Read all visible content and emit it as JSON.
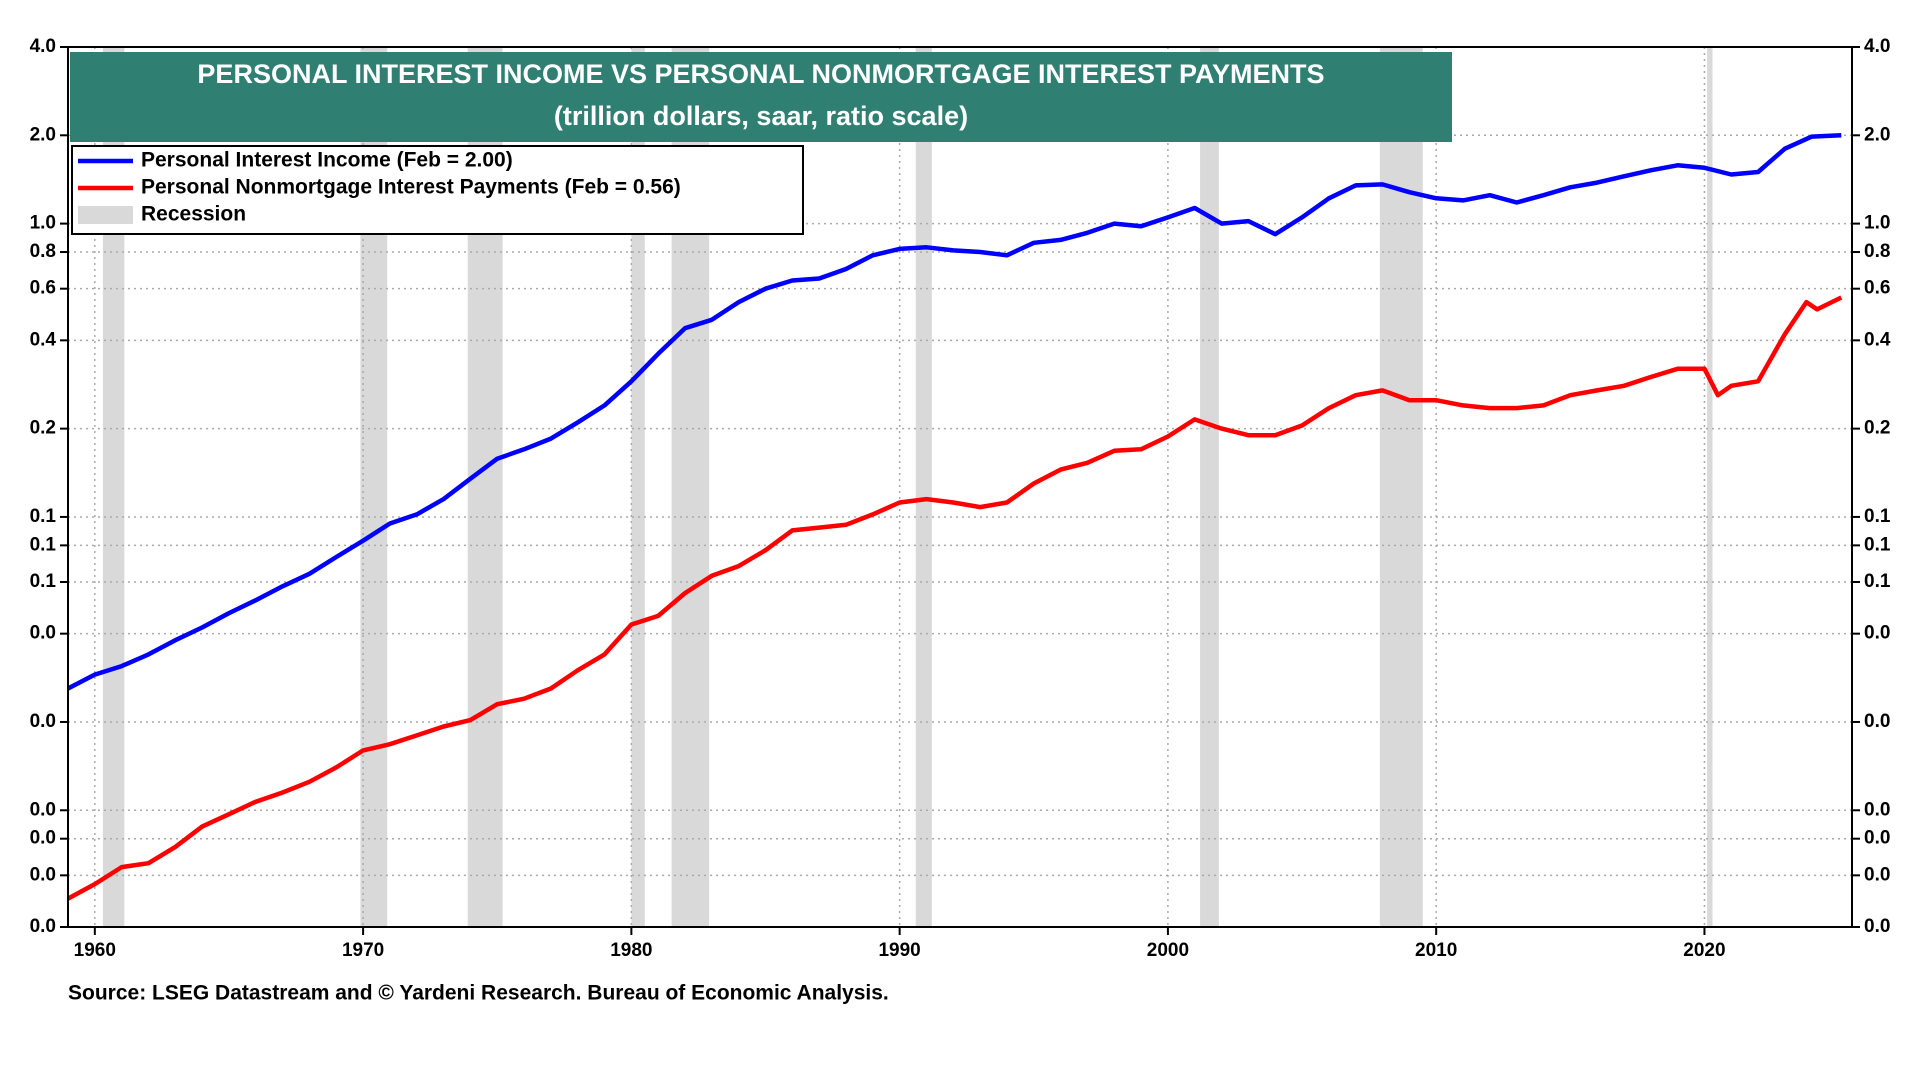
{
  "chart_data": {
    "type": "line",
    "title": "PERSONAL INTEREST INCOME VS PERSONAL NONMORTGAGE INTEREST PAYMENTS",
    "subtitle": "(trillion dollars, saar, ratio scale)",
    "source": "Source: LSEG Datastream and © Yardeni Research. Bureau of Economic Analysis.",
    "log_scale": true,
    "grid": true,
    "legend": "top-left",
    "xlim": [
      1959,
      2025.5
    ],
    "xticks": [
      1960,
      1970,
      1980,
      1990,
      2000,
      2010,
      2020
    ],
    "ylim": [
      0.004,
      4
    ],
    "yticks": [
      {
        "value": 4,
        "label": "4.0"
      },
      {
        "value": 2,
        "label": "2.0"
      },
      {
        "value": 1,
        "label": "1.0"
      },
      0.8,
      0.6,
      0.4,
      0.2,
      0.1,
      {
        "value": 0.08,
        "label": "0.1"
      },
      {
        "value": 0.06,
        "label": "0.1"
      },
      {
        "value": 0.04,
        "label": "0.0"
      },
      {
        "value": 0.02,
        "label": "0.0"
      },
      {
        "value": 0.01,
        "label": "0.0"
      },
      {
        "value": 0.008,
        "label": "0.0"
      },
      {
        "value": 0.006,
        "label": "0.0"
      },
      {
        "value": 0.004,
        "label": "0.0"
      }
    ],
    "recessions": {
      "name": "Recession",
      "color": "#d9d9d9",
      "periods": [
        [
          1960.3,
          1961.1
        ],
        [
          1969.9,
          1970.9
        ],
        [
          1973.9,
          1975.2
        ],
        [
          1980.0,
          1980.5
        ],
        [
          1981.5,
          1982.9
        ],
        [
          1990.6,
          1991.2
        ],
        [
          2001.2,
          2001.9
        ],
        [
          2007.9,
          2009.5
        ],
        [
          2020.1,
          2020.3
        ]
      ]
    },
    "series": [
      {
        "name": "Personal Interest Income (Feb = 2.00)",
        "color": "#0000ff",
        "x": [
          1959,
          1960,
          1961,
          1962,
          1963,
          1964,
          1965,
          1966,
          1967,
          1968,
          1969,
          1970,
          1971,
          1972,
          1973,
          1974,
          1975,
          1976,
          1977,
          1978,
          1979,
          1980,
          1981,
          1982,
          1983,
          1984,
          1985,
          1986,
          1987,
          1988,
          1989,
          1990,
          1991,
          1992,
          1993,
          1994,
          1995,
          1996,
          1997,
          1998,
          1999,
          2000,
          2001,
          2002,
          2003,
          2004,
          2005,
          2006,
          2007,
          2008,
          2009,
          2010,
          2011,
          2012,
          2013,
          2014,
          2015,
          2016,
          2017,
          2018,
          2019,
          2020,
          2021,
          2022,
          2023,
          2024,
          2025.1
        ],
        "values": [
          0.026,
          0.029,
          0.031,
          0.034,
          0.038,
          0.042,
          0.047,
          0.052,
          0.058,
          0.064,
          0.073,
          0.083,
          0.095,
          0.102,
          0.115,
          0.135,
          0.158,
          0.17,
          0.185,
          0.21,
          0.24,
          0.29,
          0.36,
          0.44,
          0.47,
          0.54,
          0.6,
          0.64,
          0.65,
          0.7,
          0.78,
          0.82,
          0.83,
          0.81,
          0.8,
          0.78,
          0.86,
          0.88,
          0.93,
          1.0,
          0.98,
          1.05,
          1.13,
          1.0,
          1.02,
          0.92,
          1.05,
          1.22,
          1.35,
          1.36,
          1.28,
          1.22,
          1.2,
          1.25,
          1.18,
          1.25,
          1.33,
          1.38,
          1.45,
          1.52,
          1.58,
          1.55,
          1.47,
          1.5,
          1.8,
          1.98,
          2.0
        ]
      },
      {
        "name": "Personal Nonmortgage Interest Payments (Feb = 0.56)",
        "color": "#ff0000",
        "x": [
          1959,
          1960,
          1961,
          1962,
          1963,
          1964,
          1965,
          1966,
          1967,
          1968,
          1969,
          1970,
          1971,
          1972,
          1973,
          1974,
          1975,
          1976,
          1977,
          1978,
          1979,
          1980,
          1981,
          1982,
          1983,
          1984,
          1985,
          1986,
          1987,
          1988,
          1989,
          1990,
          1991,
          1992,
          1993,
          1994,
          1995,
          1996,
          1997,
          1998,
          1999,
          2000,
          2001,
          2002,
          2003,
          2004,
          2005,
          2006,
          2007,
          2008,
          2009,
          2010,
          2011,
          2012,
          2013,
          2014,
          2015,
          2016,
          2017,
          2018,
          2019,
          2020,
          2020.5,
          2021,
          2022,
          2023,
          2023.8,
          2024.2,
          2025.1
        ],
        "values": [
          0.005,
          0.0056,
          0.0064,
          0.0066,
          0.0075,
          0.0088,
          0.0097,
          0.0107,
          0.0115,
          0.0125,
          0.014,
          0.016,
          0.0168,
          0.018,
          0.0193,
          0.0203,
          0.023,
          0.024,
          0.026,
          0.03,
          0.034,
          0.043,
          0.046,
          0.055,
          0.063,
          0.068,
          0.077,
          0.09,
          0.092,
          0.094,
          0.102,
          0.112,
          0.115,
          0.112,
          0.108,
          0.112,
          0.13,
          0.145,
          0.153,
          0.168,
          0.17,
          0.188,
          0.215,
          0.2,
          0.19,
          0.19,
          0.205,
          0.235,
          0.26,
          0.27,
          0.25,
          0.25,
          0.24,
          0.235,
          0.235,
          0.24,
          0.26,
          0.27,
          0.28,
          0.3,
          0.32,
          0.32,
          0.26,
          0.28,
          0.29,
          0.42,
          0.54,
          0.51,
          0.56
        ]
      }
    ]
  }
}
